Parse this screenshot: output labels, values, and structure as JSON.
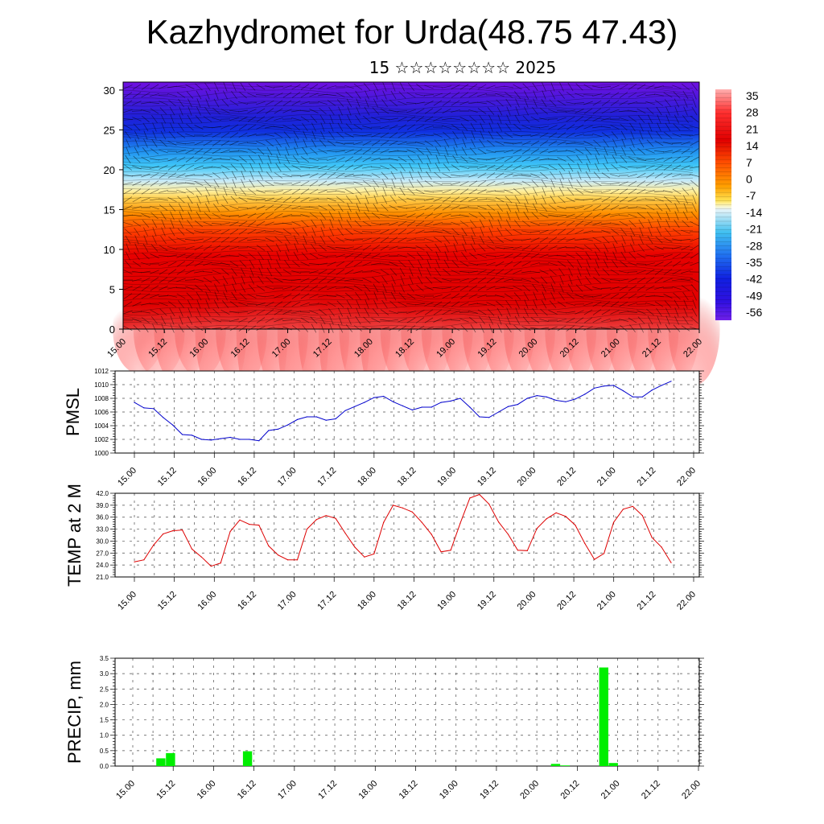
{
  "page": {
    "title": "Kazhydromet for Urda(48.75 47.43)",
    "subtitle": "15 ☆☆☆☆☆☆☆☆ 2025"
  },
  "chart_data": [
    {
      "type": "heatmap",
      "name": "vertical-section",
      "x_ticks": [
        "15.00",
        "15.12",
        "16.00",
        "16.12",
        "17.00",
        "17.12",
        "18.00",
        "18.12",
        "19.00",
        "19.12",
        "20.00",
        "20.12",
        "21.00",
        "21.12",
        "22.00"
      ],
      "y_ticks": [
        0,
        5,
        10,
        15,
        20,
        25,
        30
      ],
      "ylim": [
        0,
        31
      ],
      "colorbar_labels": [
        "35",
        "28",
        "21",
        "14",
        "7",
        "0",
        "-7",
        "-14",
        "-21",
        "-28",
        "-35",
        "-42",
        "-49",
        "-56"
      ],
      "colors": {
        "warm_low": "#ff9090",
        "warm": "#e00000",
        "orange": "#ff7000",
        "yellow": "#ffe870",
        "cyan": "#40c8f8",
        "blue": "#1030e0",
        "purple": "#7010e0"
      }
    },
    {
      "type": "line",
      "name": "pmsl",
      "ylabel": "PMSL",
      "ylim": [
        1000,
        1012
      ],
      "y_ticks": [
        "1000",
        "1002",
        "1004",
        "1006",
        "1008",
        "1010",
        "1012"
      ],
      "x_ticks": [
        "15.00",
        "15.12",
        "16.00",
        "16.12",
        "17.00",
        "17.12",
        "18.00",
        "18.12",
        "19.00",
        "19.12",
        "20.00",
        "20.12",
        "21.00",
        "21.12",
        "22.00"
      ],
      "color": "#0000cc",
      "values": [
        1007.4,
        1006.6,
        1006.5,
        1005.2,
        1004.1,
        1002.7,
        1002.6,
        1002.0,
        1001.9,
        1002.1,
        1002.3,
        1002.0,
        1002.0,
        1001.8,
        1003.3,
        1003.5,
        1004.1,
        1004.9,
        1005.3,
        1005.3,
        1004.8,
        1005.0,
        1006.2,
        1006.8,
        1007.4,
        1008.1,
        1008.3,
        1007.5,
        1006.9,
        1006.3,
        1006.7,
        1006.7,
        1007.4,
        1007.6,
        1008.0,
        1006.7,
        1005.3,
        1005.2,
        1006.0,
        1006.8,
        1007.1,
        1008.0,
        1008.4,
        1008.2,
        1007.7,
        1007.5,
        1007.9,
        1008.6,
        1009.5,
        1009.8,
        1009.9,
        1009.1,
        1008.2,
        1008.2,
        1009.2,
        1009.9,
        1010.5
      ]
    },
    {
      "type": "line",
      "name": "temp2m",
      "ylabel": "TEMP at 2 M",
      "ylim": [
        21,
        42
      ],
      "y_ticks": [
        "21.0",
        "24.0",
        "27.0",
        "30.0",
        "33.0",
        "36.0",
        "39.0",
        "42.0"
      ],
      "x_ticks": [
        "15.00",
        "15.12",
        "16.00",
        "16.12",
        "17.00",
        "17.12",
        "18.00",
        "18.12",
        "19.00",
        "19.12",
        "20.00",
        "20.12",
        "21.00",
        "21.12",
        "22.00"
      ],
      "color": "#dd0000",
      "values": [
        24.8,
        25.3,
        29.0,
        31.8,
        32.6,
        32.8,
        28.0,
        26.0,
        23.7,
        24.5,
        32.4,
        35.3,
        34.2,
        34.0,
        28.8,
        26.5,
        25.3,
        25.3,
        33.0,
        35.4,
        36.4,
        35.7,
        32.0,
        28.5,
        26.0,
        26.8,
        34.7,
        39.0,
        38.3,
        37.3,
        34.7,
        31.7,
        27.3,
        27.7,
        34.5,
        40.8,
        41.7,
        39.3,
        34.8,
        31.7,
        27.7,
        27.6,
        33.2,
        35.6,
        37.1,
        36.2,
        34.0,
        29.4,
        25.4,
        26.9,
        34.7,
        38.0,
        38.7,
        36.4,
        30.9,
        28.5,
        24.6
      ]
    },
    {
      "type": "bar",
      "name": "precip",
      "ylabel": "PRECIP, mm",
      "ylim": [
        0,
        3.5
      ],
      "y_ticks": [
        "0.0",
        "0.5",
        "1.0",
        "1.5",
        "2.0",
        "2.5",
        "3.0",
        "3.5"
      ],
      "x_ticks": [
        "15.00",
        "15.12",
        "16.00",
        "16.12",
        "17.00",
        "17.12",
        "18.00",
        "18.12",
        "19.00",
        "19.12",
        "20.00",
        "20.12",
        "21.00",
        "21.12",
        "22.00"
      ],
      "color": "#00ee00",
      "values": [
        0,
        0,
        0,
        0.25,
        0.42,
        0,
        0,
        0,
        0,
        0,
        0,
        0,
        0.48,
        0,
        0,
        0,
        0,
        0,
        0,
        0,
        0,
        0,
        0,
        0,
        0,
        0,
        0,
        0,
        0,
        0,
        0,
        0,
        0,
        0,
        0,
        0,
        0,
        0,
        0,
        0,
        0,
        0,
        0,
        0,
        0.07,
        0.02,
        0,
        0,
        0,
        3.2,
        0.1,
        0,
        0,
        0,
        0,
        0,
        0
      ]
    }
  ]
}
